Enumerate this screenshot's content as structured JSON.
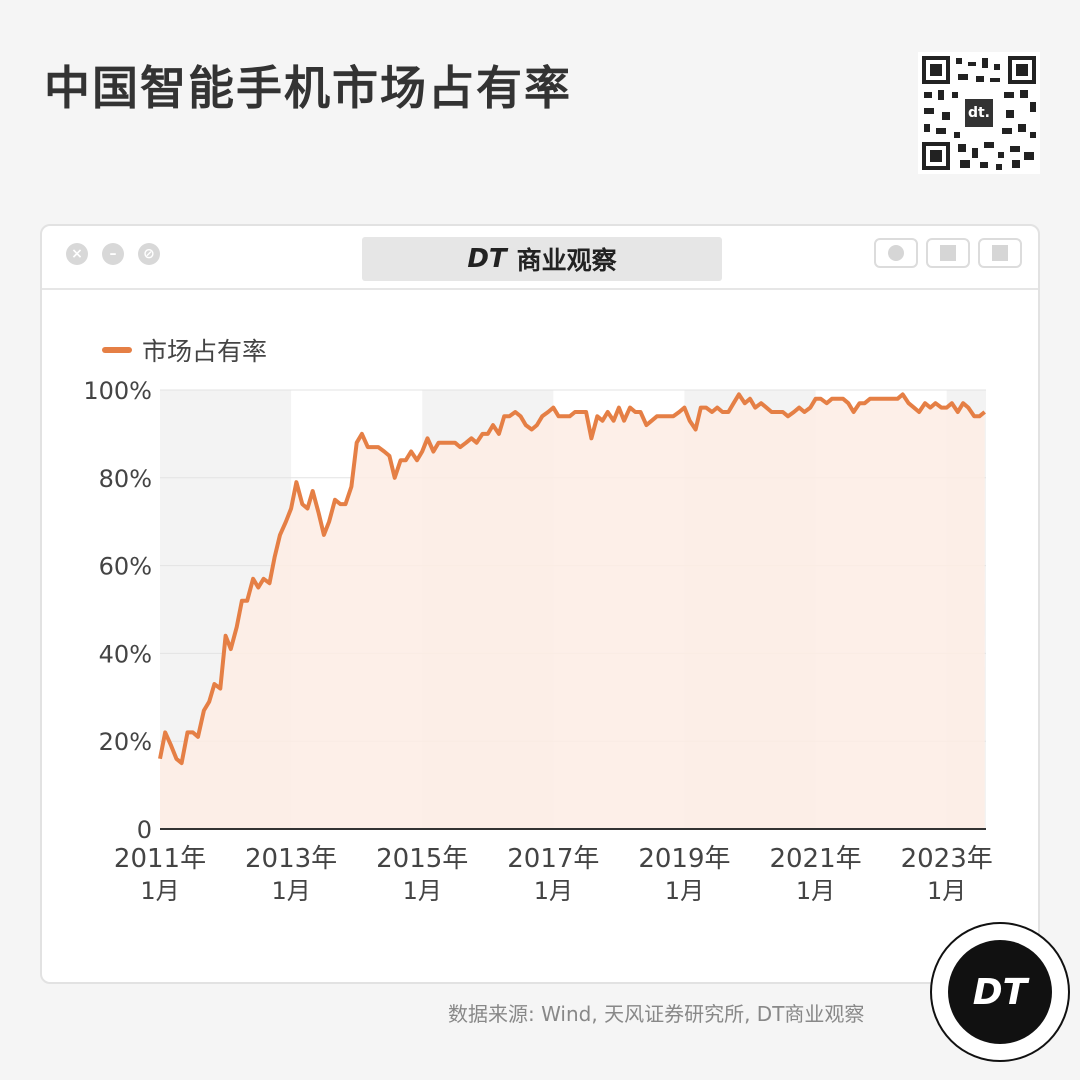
{
  "title": "中国智能手机市场占有率",
  "qr_logo": "dt.",
  "window": {
    "brand_dt": "DT",
    "brand_name": "商业观察",
    "controls": [
      "close-icon",
      "minimize-icon",
      "maximize-icon"
    ],
    "toolbar_icons": [
      "record-icon",
      "share-icon",
      "copy-icon"
    ]
  },
  "source": "数据来源: Wind, 天风证券研究所, DT商业观察",
  "badge": "DT",
  "colors": {
    "line": "#e57f45",
    "fill": "#fdece4",
    "band": "#f3f3f3"
  },
  "chart_data": {
    "type": "area",
    "legend": "市场占有率",
    "ylim": [
      0,
      100
    ],
    "y_ticks": [
      "0",
      "20%",
      "40%",
      "60%",
      "80%",
      "100%"
    ],
    "x_ticks": [
      {
        "year": "2011年",
        "month": "1月",
        "x": 2011.0
      },
      {
        "year": "2013年",
        "month": "1月",
        "x": 2013.0
      },
      {
        "year": "2015年",
        "month": "1月",
        "x": 2015.0
      },
      {
        "year": "2017年",
        "month": "1月",
        "x": 2017.0
      },
      {
        "year": "2019年",
        "month": "1月",
        "x": 2019.0
      },
      {
        "year": "2021年",
        "month": "1月",
        "x": 2021.0
      },
      {
        "year": "2023年",
        "month": "1月",
        "x": 2023.0
      }
    ],
    "xlim": [
      2011.0,
      2023.6
    ],
    "series": [
      {
        "name": "市场占有率",
        "points": [
          [
            2011.0,
            16
          ],
          [
            2011.08,
            22
          ],
          [
            2011.17,
            19
          ],
          [
            2011.25,
            16
          ],
          [
            2011.33,
            15
          ],
          [
            2011.42,
            22
          ],
          [
            2011.5,
            22
          ],
          [
            2011.58,
            21
          ],
          [
            2011.67,
            27
          ],
          [
            2011.75,
            29
          ],
          [
            2011.83,
            33
          ],
          [
            2011.92,
            32
          ],
          [
            2012.0,
            44
          ],
          [
            2012.08,
            41
          ],
          [
            2012.17,
            46
          ],
          [
            2012.25,
            52
          ],
          [
            2012.33,
            52
          ],
          [
            2012.42,
            57
          ],
          [
            2012.5,
            55
          ],
          [
            2012.58,
            57
          ],
          [
            2012.67,
            56
          ],
          [
            2012.75,
            62
          ],
          [
            2012.83,
            67
          ],
          [
            2012.92,
            70
          ],
          [
            2013.0,
            73
          ],
          [
            2013.08,
            79
          ],
          [
            2013.17,
            74
          ],
          [
            2013.25,
            73
          ],
          [
            2013.33,
            77
          ],
          [
            2013.42,
            72
          ],
          [
            2013.5,
            67
          ],
          [
            2013.58,
            70
          ],
          [
            2013.67,
            75
          ],
          [
            2013.75,
            74
          ],
          [
            2013.83,
            74
          ],
          [
            2013.92,
            78
          ],
          [
            2014.0,
            88
          ],
          [
            2014.08,
            90
          ],
          [
            2014.17,
            87
          ],
          [
            2014.25,
            87
          ],
          [
            2014.33,
            87
          ],
          [
            2014.42,
            86
          ],
          [
            2014.5,
            85
          ],
          [
            2014.58,
            80
          ],
          [
            2014.67,
            84
          ],
          [
            2014.75,
            84
          ],
          [
            2014.83,
            86
          ],
          [
            2014.92,
            84
          ],
          [
            2015.0,
            86
          ],
          [
            2015.08,
            89
          ],
          [
            2015.17,
            86
          ],
          [
            2015.25,
            88
          ],
          [
            2015.33,
            88
          ],
          [
            2015.42,
            88
          ],
          [
            2015.5,
            88
          ],
          [
            2015.58,
            87
          ],
          [
            2015.67,
            88
          ],
          [
            2015.75,
            89
          ],
          [
            2015.83,
            88
          ],
          [
            2015.92,
            90
          ],
          [
            2016.0,
            90
          ],
          [
            2016.08,
            92
          ],
          [
            2016.17,
            90
          ],
          [
            2016.25,
            94
          ],
          [
            2016.33,
            94
          ],
          [
            2016.42,
            95
          ],
          [
            2016.5,
            94
          ],
          [
            2016.58,
            92
          ],
          [
            2016.67,
            91
          ],
          [
            2016.75,
            92
          ],
          [
            2016.83,
            94
          ],
          [
            2016.92,
            95
          ],
          [
            2017.0,
            96
          ],
          [
            2017.08,
            94
          ],
          [
            2017.17,
            94
          ],
          [
            2017.25,
            94
          ],
          [
            2017.33,
            95
          ],
          [
            2017.42,
            95
          ],
          [
            2017.5,
            95
          ],
          [
            2017.58,
            89
          ],
          [
            2017.67,
            94
          ],
          [
            2017.75,
            93
          ],
          [
            2017.83,
            95
          ],
          [
            2017.92,
            93
          ],
          [
            2018.0,
            96
          ],
          [
            2018.08,
            93
          ],
          [
            2018.17,
            96
          ],
          [
            2018.25,
            95
          ],
          [
            2018.33,
            95
          ],
          [
            2018.42,
            92
          ],
          [
            2018.5,
            93
          ],
          [
            2018.58,
            94
          ],
          [
            2018.67,
            94
          ],
          [
            2018.75,
            94
          ],
          [
            2018.83,
            94
          ],
          [
            2018.92,
            95
          ],
          [
            2019.0,
            96
          ],
          [
            2019.08,
            93
          ],
          [
            2019.17,
            91
          ],
          [
            2019.25,
            96
          ],
          [
            2019.33,
            96
          ],
          [
            2019.42,
            95
          ],
          [
            2019.5,
            96
          ],
          [
            2019.58,
            95
          ],
          [
            2019.67,
            95
          ],
          [
            2019.75,
            97
          ],
          [
            2019.83,
            99
          ],
          [
            2019.92,
            97
          ],
          [
            2020.0,
            98
          ],
          [
            2020.08,
            96
          ],
          [
            2020.17,
            97
          ],
          [
            2020.25,
            96
          ],
          [
            2020.33,
            95
          ],
          [
            2020.42,
            95
          ],
          [
            2020.5,
            95
          ],
          [
            2020.58,
            94
          ],
          [
            2020.67,
            95
          ],
          [
            2020.75,
            96
          ],
          [
            2020.83,
            95
          ],
          [
            2020.92,
            96
          ],
          [
            2021.0,
            98
          ],
          [
            2021.08,
            98
          ],
          [
            2021.17,
            97
          ],
          [
            2021.25,
            98
          ],
          [
            2021.33,
            98
          ],
          [
            2021.42,
            98
          ],
          [
            2021.5,
            97
          ],
          [
            2021.58,
            95
          ],
          [
            2021.67,
            97
          ],
          [
            2021.75,
            97
          ],
          [
            2021.83,
            98
          ],
          [
            2021.92,
            98
          ],
          [
            2022.0,
            98
          ],
          [
            2022.08,
            98
          ],
          [
            2022.17,
            98
          ],
          [
            2022.25,
            98
          ],
          [
            2022.33,
            99
          ],
          [
            2022.42,
            97
          ],
          [
            2022.5,
            96
          ],
          [
            2022.58,
            95
          ],
          [
            2022.67,
            97
          ],
          [
            2022.75,
            96
          ],
          [
            2022.83,
            97
          ],
          [
            2022.92,
            96
          ],
          [
            2023.0,
            96
          ],
          [
            2023.08,
            97
          ],
          [
            2023.17,
            95
          ],
          [
            2023.25,
            97
          ],
          [
            2023.33,
            96
          ],
          [
            2023.42,
            94
          ],
          [
            2023.5,
            94
          ],
          [
            2023.58,
            95
          ]
        ]
      }
    ]
  }
}
